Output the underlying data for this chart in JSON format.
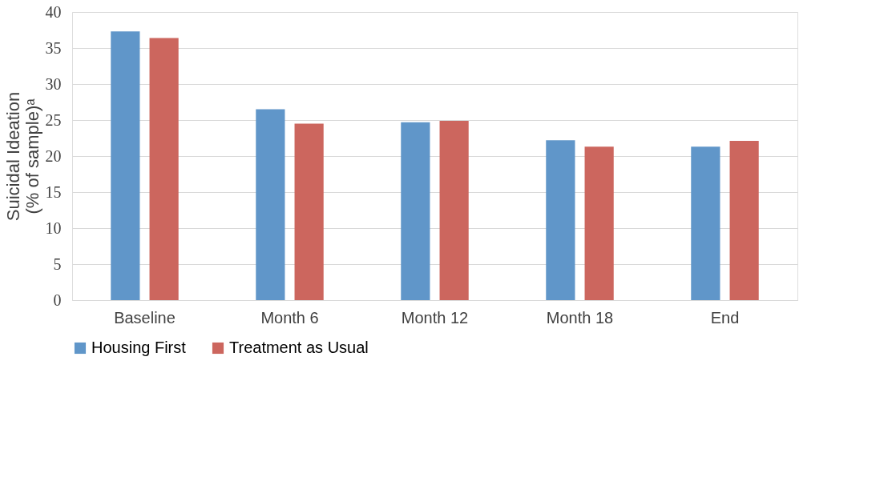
{
  "chart_data": {
    "type": "bar",
    "ylabel": "Suicidal Ideation\n(% of sample)ᵃ",
    "categories": [
      "Baseline",
      "Month 6",
      "Month 12",
      "Month 18",
      "End"
    ],
    "series": [
      {
        "name": "Housing First",
        "color": "#6096c9",
        "values": [
          37.3,
          26.5,
          24.7,
          22.2,
          21.3
        ]
      },
      {
        "name": "Treatment as Usual",
        "color": "#cc665e",
        "values": [
          36.4,
          24.5,
          24.9,
          21.3,
          22.1
        ]
      }
    ],
    "ylim": [
      0,
      40
    ],
    "yticks": [
      0,
      5,
      10,
      15,
      20,
      25,
      30,
      35,
      40
    ],
    "grid": "y",
    "legend": "bottom"
  }
}
